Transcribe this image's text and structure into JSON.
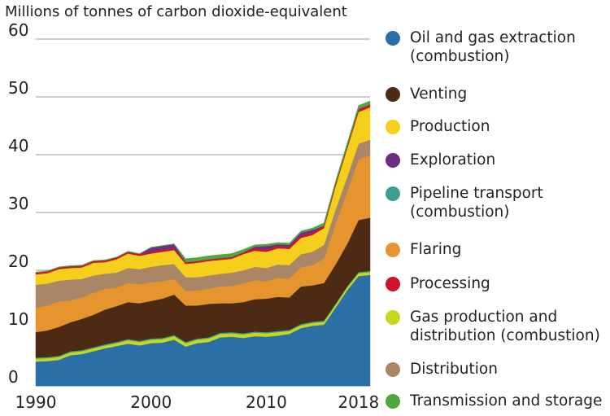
{
  "chart_data": {
    "type": "area",
    "stacked": true,
    "title": "",
    "ylabel": "Millions of tonnes of carbon dioxide-equivalent",
    "xlabel": "",
    "ylim": [
      0,
      60
    ],
    "xlim": [
      1990,
      2019
    ],
    "yticks": [
      0,
      10,
      20,
      30,
      40,
      50,
      60
    ],
    "xticks": [
      1990,
      2000,
      2010,
      2018
    ],
    "grid": "horizontal",
    "legend_position": "right",
    "x": [
      1990,
      1991,
      1992,
      1993,
      1994,
      1995,
      1996,
      1997,
      1998,
      1999,
      2000,
      2001,
      2002,
      2003,
      2004,
      2005,
      2006,
      2007,
      2008,
      2009,
      2010,
      2011,
      2012,
      2013,
      2014,
      2015,
      2016,
      2017,
      2018,
      2019
    ],
    "series": [
      {
        "name": "Oil and gas extraction\n(combustion)",
        "color": "#2a6fa5",
        "values": [
          4.2,
          4.3,
          4.5,
          5.3,
          5.5,
          6.0,
          6.5,
          6.9,
          7.3,
          7.0,
          7.4,
          7.5,
          8.0,
          6.8,
          7.4,
          7.6,
          8.4,
          8.5,
          8.3,
          8.6,
          8.5,
          8.7,
          9.0,
          10.0,
          10.4,
          10.6,
          13.5,
          16.5,
          19.0,
          19.2
        ]
      },
      {
        "name": "Gas production and\ndistribution (combustion)",
        "color": "#c5d81c",
        "values": [
          0.5,
          0.5,
          0.5,
          0.5,
          0.5,
          0.5,
          0.5,
          0.5,
          0.6,
          0.6,
          0.6,
          0.6,
          0.6,
          0.6,
          0.6,
          0.6,
          0.6,
          0.6,
          0.6,
          0.6,
          0.6,
          0.6,
          0.5,
          0.5,
          0.5,
          0.5,
          0.5,
          0.5,
          0.5,
          0.5
        ]
      },
      {
        "name": "Pipeline transport\n(combustion)",
        "color": "#3f9d8f",
        "values": [
          0.2,
          0.2,
          0.2,
          0.2,
          0.2,
          0.2,
          0.2,
          0.2,
          0.2,
          0.2,
          0.2,
          0.2,
          0.2,
          0.2,
          0.2,
          0.2,
          0.2,
          0.2,
          0.2,
          0.2,
          0.2,
          0.2,
          0.2,
          0.2,
          0.2,
          0.2,
          0.2,
          0.2,
          0.2,
          0.2
        ]
      },
      {
        "name": "Venting",
        "color": "#4d2a13",
        "values": [
          4.4,
          4.6,
          5.0,
          5.0,
          5.4,
          5.6,
          6.0,
          6.2,
          6.4,
          6.5,
          6.5,
          6.8,
          7.0,
          6.3,
          5.7,
          5.8,
          5.1,
          5.0,
          5.4,
          5.6,
          5.8,
          5.9,
          5.6,
          6.5,
          6.3,
          6.5,
          6.8,
          7.3,
          9.0,
          9.2
        ]
      },
      {
        "name": "Flaring",
        "color": "#e6942d",
        "values": [
          4.2,
          4.3,
          4.4,
          3.8,
          3.7,
          3.8,
          3.6,
          3.2,
          3.3,
          3.3,
          3.2,
          3.0,
          2.7,
          2.5,
          2.6,
          2.6,
          2.9,
          3.0,
          3.2,
          3.3,
          3.0,
          3.3,
          3.3,
          3.3,
          3.5,
          4.2,
          7.0,
          9.0,
          10.5,
          10.8
        ]
      },
      {
        "name": "Distribution",
        "color": "#a98766",
        "values": [
          4.0,
          3.8,
          3.6,
          3.6,
          3.2,
          3.0,
          2.6,
          2.6,
          2.6,
          2.6,
          2.7,
          2.8,
          2.6,
          2.4,
          2.3,
          2.3,
          2.2,
          2.3,
          2.3,
          2.3,
          2.3,
          2.3,
          2.3,
          2.3,
          2.3,
          2.4,
          2.5,
          2.6,
          2.7,
          2.7
        ]
      },
      {
        "name": "Production",
        "color": "#f6cf1c",
        "values": [
          1.8,
          1.8,
          2.0,
          2.0,
          2.0,
          2.2,
          2.0,
          2.3,
          2.5,
          2.3,
          2.3,
          2.3,
          2.4,
          2.3,
          2.5,
          2.5,
          2.4,
          2.4,
          2.8,
          2.8,
          2.8,
          2.8,
          2.8,
          2.8,
          2.9,
          2.9,
          4.0,
          4.9,
          5.5,
          5.6
        ]
      },
      {
        "name": "Processing",
        "color": "#d0122f",
        "values": [
          0.3,
          0.3,
          0.3,
          0.3,
          0.3,
          0.3,
          0.3,
          0.3,
          0.3,
          0.3,
          0.3,
          0.3,
          0.3,
          0.3,
          0.3,
          0.3,
          0.3,
          0.3,
          0.3,
          0.4,
          0.4,
          0.4,
          0.4,
          0.4,
          0.4,
          0.4,
          0.4,
          0.4,
          0.5,
          0.5
        ]
      },
      {
        "name": "Exploration",
        "color": "#6f2d86",
        "values": [
          0.0,
          0.0,
          0.0,
          0.0,
          0.0,
          0.0,
          0.0,
          0.0,
          0.0,
          0.0,
          0.7,
          0.7,
          0.7,
          0.0,
          0.0,
          0.0,
          0.0,
          0.0,
          0.0,
          0.3,
          0.6,
          0.3,
          0.3,
          0.5,
          0.5,
          0.0,
          0.0,
          0.0,
          0.0,
          0.0
        ]
      },
      {
        "name": "Transmission and storage",
        "color": "#4ea83b",
        "values": [
          0.1,
          0.1,
          0.1,
          0.1,
          0.1,
          0.1,
          0.1,
          0.1,
          0.1,
          0.1,
          0.1,
          0.1,
          0.1,
          0.6,
          0.6,
          0.6,
          0.6,
          0.6,
          0.5,
          0.3,
          0.3,
          0.3,
          0.3,
          0.3,
          0.3,
          0.5,
          0.5,
          0.5,
          0.6,
          0.6
        ]
      }
    ]
  },
  "legend_order": [
    "Oil and gas extraction\n(combustion)",
    "Venting",
    "Production",
    "Exploration",
    "Pipeline transport\n(combustion)",
    "Flaring",
    "Processing",
    "Gas production and\ndistribution (combustion)",
    "Distribution",
    "Transmission and storage"
  ]
}
